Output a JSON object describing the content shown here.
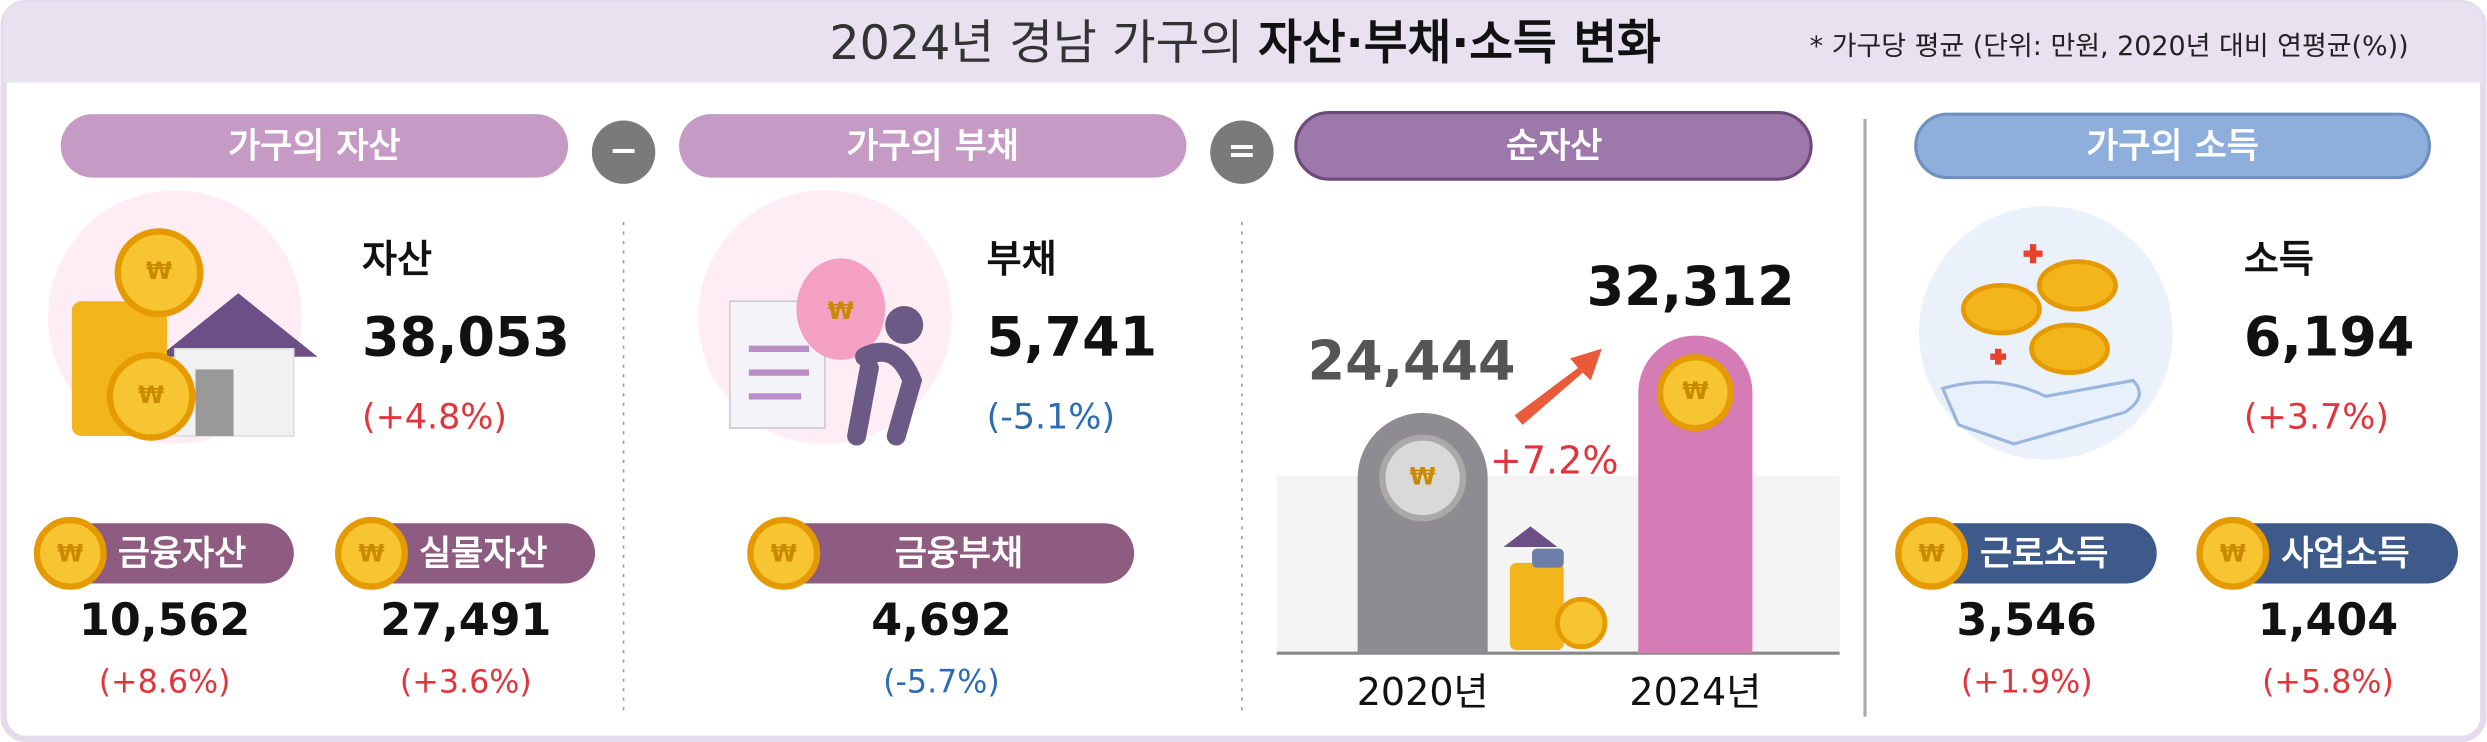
{
  "header": {
    "title_prefix": "2024년 경남 가구의 ",
    "title_bold": "자산·부채·소득 변화",
    "note": "* 가구당 평균 (단위: 만원, 2020년 대비 연평균(%))"
  },
  "coin_symbol": "₩",
  "operators": {
    "minus": "−",
    "equals": "="
  },
  "assets": {
    "heading": "가구의 자산",
    "label": "자산",
    "value": "38,053",
    "change": "(+4.8%)",
    "items": [
      {
        "label": "금융자산",
        "value": "10,562",
        "change": "(+8.6%)"
      },
      {
        "label": "실물자산",
        "value": "27,491",
        "change": "(+3.6%)"
      }
    ]
  },
  "debt": {
    "heading": "가구의 부채",
    "label": "부채",
    "value": "5,741",
    "change": "(-5.1%)",
    "items": [
      {
        "label": "금융부채",
        "value": "4,692",
        "change": "(-5.7%)"
      }
    ]
  },
  "net_assets": {
    "heading": "순자산",
    "categories": [
      "2020년",
      "2024년"
    ],
    "values": [
      24444,
      32312
    ],
    "value_labels": [
      "24,444",
      "32,312"
    ],
    "change": "+7.2%"
  },
  "income": {
    "heading": "가구의 소득",
    "label": "소득",
    "value": "6,194",
    "change": "(+3.7%)",
    "items": [
      {
        "label": "근로소득",
        "value": "3,546",
        "change": "(+1.9%)"
      },
      {
        "label": "사업소득",
        "value": "1,404",
        "change": "(+5.8%)"
      }
    ]
  }
}
